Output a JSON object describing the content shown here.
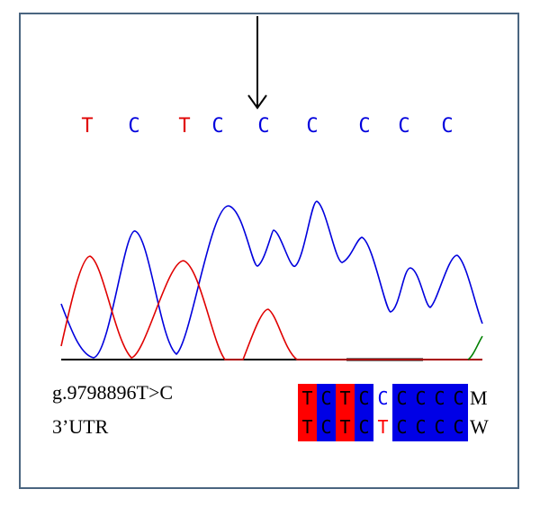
{
  "base_calls": [
    {
      "base": "T",
      "color": "#e00000"
    },
    {
      "base": "C",
      "color": "#0000dd"
    },
    {
      "base": "T",
      "color": "#e00000"
    },
    {
      "base": "C",
      "color": "#0000dd"
    },
    {
      "base": "C",
      "color": "#0000dd"
    },
    {
      "base": "C",
      "color": "#0000dd"
    },
    {
      "base": "C",
      "color": "#0000dd"
    },
    {
      "base": "C",
      "color": "#0000dd"
    },
    {
      "base": "C",
      "color": "#0000dd"
    }
  ],
  "arrow": {
    "direction": "down",
    "points_to_base_index": 4
  },
  "traces": {
    "blue_color": "#0000dd",
    "red_color": "#e00000",
    "green_color": "#008000",
    "baseline_color": "#000000"
  },
  "variant": {
    "mutation": "g.9798896T>C",
    "region": "3’UTR"
  },
  "alignment": {
    "rows": [
      {
        "tag": "M",
        "bases": [
          "T",
          "C",
          "T",
          "C",
          "C",
          "C",
          "C",
          "C",
          "C"
        ],
        "styles": [
          "red",
          "blue",
          "red",
          "blue",
          "white-blue",
          "blue",
          "blue",
          "blue",
          "blue"
        ]
      },
      {
        "tag": "W",
        "bases": [
          "T",
          "C",
          "T",
          "C",
          "T",
          "C",
          "C",
          "C",
          "C"
        ],
        "styles": [
          "red",
          "blue",
          "red",
          "blue",
          "white-red",
          "blue",
          "blue",
          "blue",
          "blue"
        ]
      }
    ],
    "colors": {
      "red": "#ff0000",
      "blue": "#0000e6"
    }
  }
}
